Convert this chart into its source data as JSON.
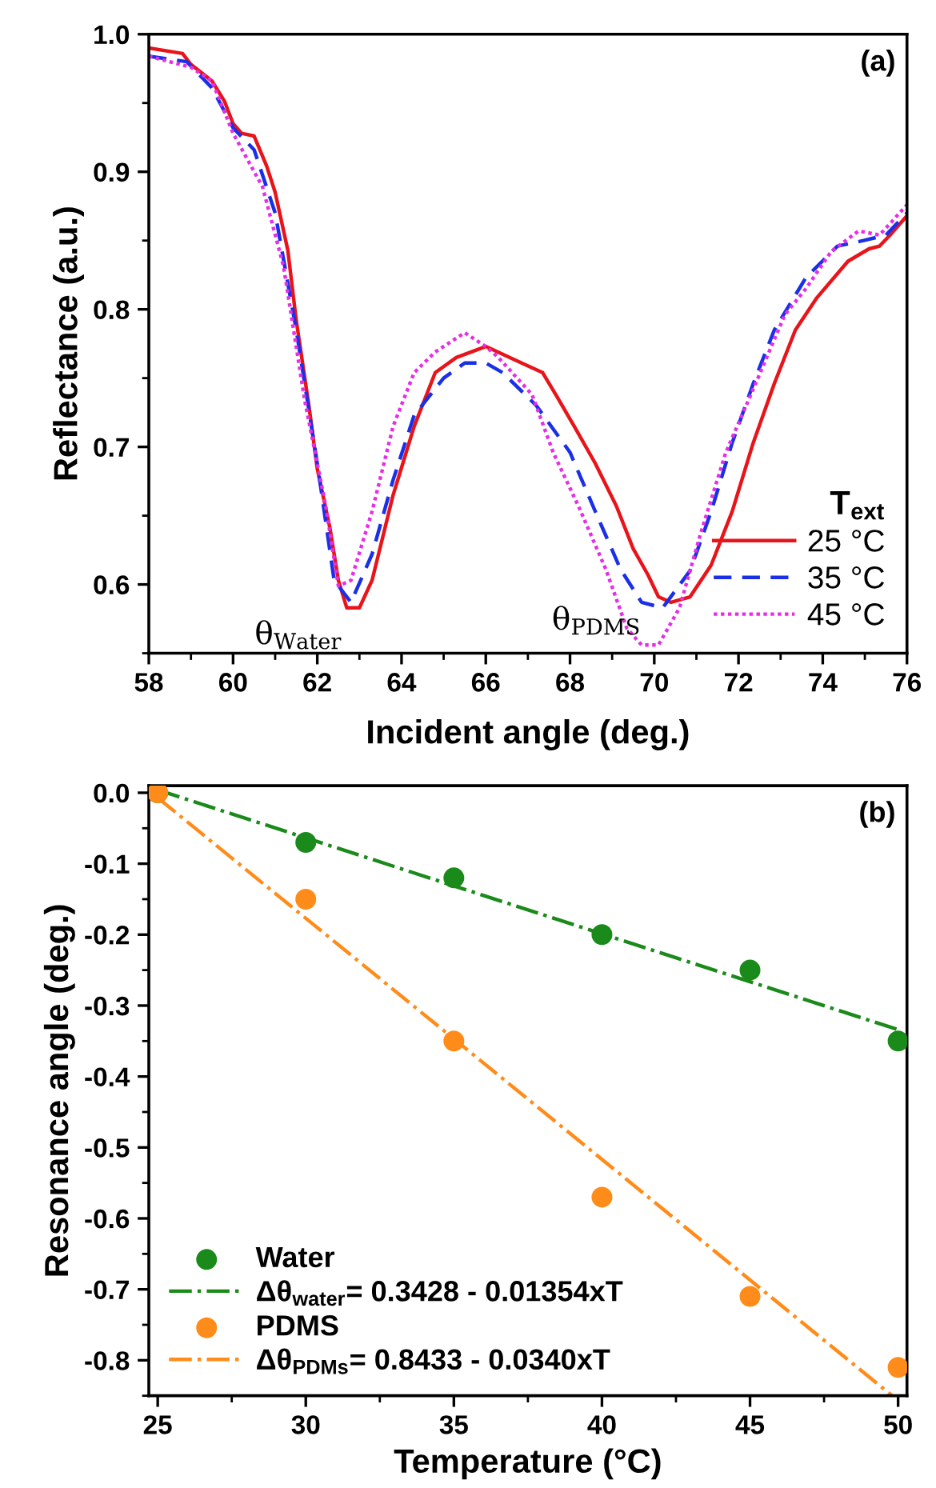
{
  "chart_data": [
    {
      "type": "line",
      "xlabel": "Incident angle (deg.)",
      "ylabel": "Reflectance (a.u.)",
      "legend_title": "T$_{ext}$",
      "legend": "bottom right",
      "xlim": [
        58,
        76
      ],
      "xticks": [
        58,
        60,
        62,
        64,
        66,
        68,
        70,
        72,
        74,
        76
      ],
      "ylim": [
        0.55,
        1.0
      ],
      "yticks": [
        0.6,
        0.7,
        0.8,
        0.9,
        {
          "value": 1.0,
          "label": "1.0"
        }
      ],
      "grid": false,
      "annotations": [
        "(a)",
        {
          "text": "θ$_{Water}$",
          "x": 62.8,
          "y": 0.583
        },
        {
          "text": "θ$_{PDMS}$",
          "x": 69.9,
          "y": 0.556
        }
      ],
      "series": [
        {
          "name": "25 °C",
          "color": "#e8141a",
          "line_style": "solid",
          "x": [
            58,
            58.8,
            59.0,
            59.5,
            59.8,
            60.0,
            60.2,
            60.5,
            60.8,
            61.0,
            61.3,
            61.5,
            61.8,
            62.0,
            62.3,
            62.5,
            62.7,
            63.0,
            63.3,
            63.8,
            64.3,
            64.8,
            65.3,
            66.0,
            66.85,
            67.35,
            67.7,
            68.1,
            68.6,
            69.1,
            69.5,
            69.85,
            70.1,
            70.4,
            70.85,
            71.35,
            71.85,
            72.35,
            72.85,
            73.35,
            73.85,
            74.6,
            75.1,
            75.35,
            75.6,
            76
          ],
          "values": [
            0.99,
            0.986,
            0.978,
            0.966,
            0.951,
            0.935,
            0.928,
            0.926,
            0.904,
            0.885,
            0.843,
            0.792,
            0.73,
            0.684,
            0.641,
            0.603,
            0.583,
            0.583,
            0.603,
            0.665,
            0.715,
            0.754,
            0.765,
            0.773,
            0.761,
            0.754,
            0.736,
            0.715,
            0.688,
            0.657,
            0.626,
            0.607,
            0.591,
            0.587,
            0.591,
            0.614,
            0.653,
            0.703,
            0.746,
            0.785,
            0.808,
            0.835,
            0.844,
            0.846,
            0.854,
            0.868
          ]
        },
        {
          "name": "35 °C",
          "color": "#1a2fe8",
          "line_style": "dashed",
          "x": [
            58,
            58.9,
            59.5,
            60.0,
            60.5,
            61.0,
            61.5,
            62.0,
            62.4,
            62.8,
            63.3,
            63.8,
            64.3,
            65.0,
            65.5,
            66.0,
            66.4,
            67.2,
            68.0,
            68.6,
            69.2,
            69.7,
            70.2,
            70.85,
            71.35,
            71.85,
            72.35,
            72.85,
            73.6,
            74.35,
            74.97,
            75.5,
            76
          ],
          "values": [
            0.984,
            0.98,
            0.961,
            0.932,
            0.916,
            0.87,
            0.785,
            0.688,
            0.603,
            0.587,
            0.622,
            0.676,
            0.723,
            0.75,
            0.761,
            0.761,
            0.754,
            0.73,
            0.696,
            0.653,
            0.611,
            0.587,
            0.583,
            0.61,
            0.653,
            0.703,
            0.746,
            0.785,
            0.823,
            0.846,
            0.85,
            0.854,
            0.87
          ]
        },
        {
          "name": "45 °C",
          "color": "#e62ee6",
          "line_style": "dotted",
          "x": [
            58,
            59.0,
            59.5,
            60.0,
            60.7,
            61.2,
            61.7,
            62.2,
            62.5,
            62.8,
            63.3,
            63.8,
            64.3,
            64.8,
            65.5,
            66.0,
            66.3,
            67.1,
            67.6,
            68.2,
            68.85,
            69.35,
            69.7,
            70.1,
            70.6,
            71.1,
            71.7,
            72.35,
            73.1,
            73.6,
            74.2,
            74.85,
            75.35,
            76
          ],
          "values": [
            0.984,
            0.976,
            0.966,
            0.928,
            0.889,
            0.831,
            0.734,
            0.657,
            0.599,
            0.603,
            0.653,
            0.715,
            0.754,
            0.769,
            0.783,
            0.773,
            0.765,
            0.738,
            0.696,
            0.657,
            0.611,
            0.568,
            0.556,
            0.556,
            0.583,
            0.637,
            0.696,
            0.742,
            0.796,
            0.815,
            0.842,
            0.857,
            0.854,
            0.876
          ]
        }
      ]
    },
    {
      "type": "scatter",
      "xlabel": "Temperature (°C)",
      "ylabel": "Resonance angle (deg.)",
      "legend": "bottom left",
      "xlim": [
        24.7,
        50.3
      ],
      "xticks": [
        25,
        30,
        35,
        40,
        45,
        50
      ],
      "ylim": [
        -0.85,
        0.01
      ],
      "yticks": [
        {
          "value": 0.0,
          "label": "0.0"
        },
        -0.1,
        -0.2,
        -0.3,
        -0.4,
        -0.5,
        -0.6,
        -0.7,
        -0.8
      ],
      "grid": false,
      "annotations": [
        "(b)"
      ],
      "series": [
        {
          "name": "Water",
          "color": "#1a8a1a",
          "marker": "circle",
          "x": [
            25,
            30,
            35,
            40,
            45,
            50
          ],
          "values": [
            0.0,
            -0.07,
            -0.12,
            -0.2,
            -0.25,
            -0.35
          ]
        },
        {
          "name": "Δθ$_{water}$= 0.3428 - 0.01354xT",
          "type": "line",
          "line_style": "dashdot",
          "marker": "none",
          "color": "#1a8a1a",
          "x": [
            25,
            50
          ],
          "values": [
            0.004,
            -0.334
          ]
        },
        {
          "name": "PDMS",
          "color": "#ff8c1a",
          "marker": "circle",
          "x": [
            25,
            30,
            35,
            40,
            45,
            50
          ],
          "values": [
            0.0,
            -0.15,
            -0.35,
            -0.57,
            -0.71,
            -0.81
          ]
        },
        {
          "name": "Δθ$_{PDMs}$= 0.8433 - 0.0340xT",
          "type": "line",
          "line_style": "dashdot",
          "marker": "none",
          "color": "#ff8c1a",
          "x": [
            25,
            49.8
          ],
          "values": [
            -0.007,
            -0.85
          ]
        }
      ]
    }
  ]
}
